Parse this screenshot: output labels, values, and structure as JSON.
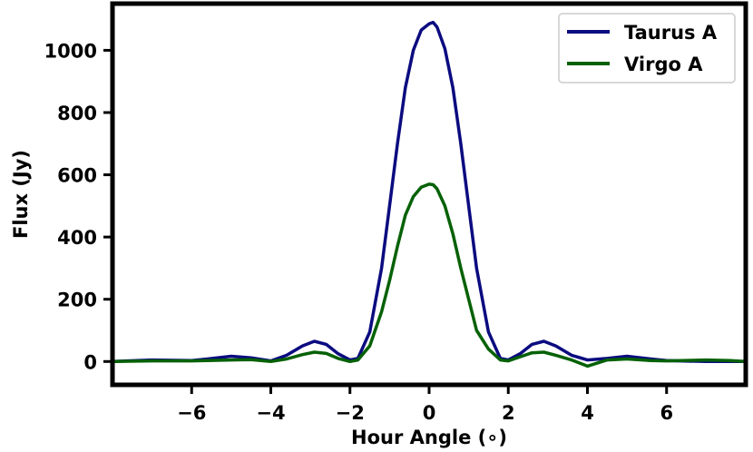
{
  "chart_data": {
    "type": "line",
    "xlabel": "Hour Angle (∘)",
    "ylabel": "Flux (Jy)",
    "xlim": [
      -8.0,
      8.0
    ],
    "ylim": [
      -75,
      1150
    ],
    "xticks": [
      -6,
      -4,
      -2,
      0,
      2,
      4,
      6
    ],
    "xtick_labels": [
      "−6",
      "−4",
      "−2",
      "0",
      "2",
      "4",
      "6"
    ],
    "yticks": [
      0,
      200,
      400,
      600,
      800,
      1000
    ],
    "ytick_labels": [
      "0",
      "200",
      "400",
      "600",
      "800",
      "1000"
    ],
    "grid": false,
    "legend_position": "top-right",
    "series": [
      {
        "name": "Taurus A",
        "color": "#0b0b80",
        "x": [
          -8.0,
          -7.0,
          -6.0,
          -5.6,
          -5.0,
          -4.5,
          -4.0,
          -3.6,
          -3.2,
          -2.9,
          -2.6,
          -2.3,
          -2.0,
          -1.8,
          -1.5,
          -1.2,
          -1.0,
          -0.8,
          -0.6,
          -0.4,
          -0.2,
          0.0,
          0.1,
          0.2,
          0.4,
          0.6,
          0.8,
          1.0,
          1.2,
          1.5,
          1.8,
          2.0,
          2.3,
          2.6,
          2.9,
          3.2,
          3.6,
          4.0,
          4.5,
          5.0,
          5.6,
          6.0,
          7.0,
          8.0
        ],
        "y": [
          0,
          5,
          3,
          8,
          17,
          12,
          2,
          20,
          50,
          65,
          55,
          25,
          5,
          10,
          95,
          300,
          500,
          700,
          880,
          1000,
          1065,
          1085,
          1090,
          1075,
          1005,
          880,
          700,
          500,
          300,
          95,
          10,
          5,
          25,
          55,
          65,
          50,
          20,
          5,
          10,
          17,
          8,
          3,
          0,
          0
        ]
      },
      {
        "name": "Virgo A",
        "color": "#066106",
        "x": [
          -8.0,
          -7.0,
          -6.0,
          -5.6,
          -5.0,
          -4.5,
          -4.0,
          -3.6,
          -3.2,
          -2.9,
          -2.6,
          -2.3,
          -2.0,
          -1.8,
          -1.5,
          -1.2,
          -1.0,
          -0.8,
          -0.6,
          -0.4,
          -0.2,
          0.0,
          0.1,
          0.2,
          0.4,
          0.6,
          0.8,
          1.0,
          1.2,
          1.5,
          1.8,
          2.0,
          2.3,
          2.6,
          2.9,
          3.2,
          3.6,
          4.0,
          4.5,
          5.0,
          5.6,
          6.0,
          7.0,
          7.6,
          8.0
        ],
        "y": [
          0,
          2,
          2,
          3,
          5,
          6,
          0,
          8,
          22,
          30,
          26,
          10,
          0,
          5,
          50,
          160,
          260,
          370,
          470,
          530,
          560,
          570,
          568,
          555,
          500,
          410,
          300,
          200,
          100,
          40,
          5,
          2,
          15,
          28,
          30,
          20,
          5,
          -15,
          5,
          8,
          3,
          2,
          5,
          3,
          0
        ]
      }
    ]
  }
}
